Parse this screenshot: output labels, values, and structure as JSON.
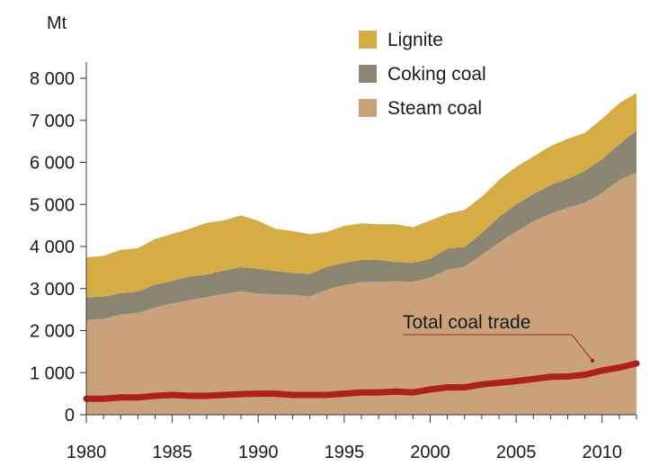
{
  "chart_data": {
    "type": "area",
    "stacked": true,
    "ylabel": "Mt",
    "ylim": [
      0,
      8000
    ],
    "yticks": [
      0,
      1000,
      2000,
      3000,
      4000,
      5000,
      6000,
      7000,
      8000
    ],
    "ytick_labels": [
      "0",
      "1 000",
      "2 000",
      "3 000",
      "4 000",
      "5 000",
      "6 000",
      "7 000",
      "8 000"
    ],
    "xlim": [
      1980,
      2012
    ],
    "xticks": [
      1980,
      1985,
      1990,
      1995,
      2000,
      2005,
      2010
    ],
    "xtick_labels": [
      "1980",
      "1985",
      "1990",
      "1995",
      "2000",
      "2005",
      "2010"
    ],
    "grid": false,
    "legend_position": "top-right",
    "x": [
      1980,
      1981,
      1982,
      1983,
      1984,
      1985,
      1986,
      1987,
      1988,
      1989,
      1990,
      1991,
      1992,
      1993,
      1994,
      1995,
      1996,
      1997,
      1998,
      1999,
      2000,
      2001,
      2002,
      2003,
      2004,
      2005,
      2006,
      2007,
      2008,
      2009,
      2010,
      2011,
      2012
    ],
    "series": [
      {
        "name": "Steam coal",
        "color": "#c9a17a",
        "values": [
          2250,
          2280,
          2380,
          2420,
          2550,
          2650,
          2720,
          2800,
          2870,
          2940,
          2880,
          2860,
          2850,
          2810,
          2980,
          3080,
          3150,
          3160,
          3170,
          3160,
          3260,
          3450,
          3520,
          3800,
          4100,
          4350,
          4600,
          4780,
          4920,
          5040,
          5280,
          5580,
          5760
        ]
      },
      {
        "name": "Coking coal",
        "color": "#8a8672",
        "values": [
          540,
          530,
          510,
          510,
          540,
          530,
          570,
          530,
          560,
          570,
          590,
          560,
          520,
          540,
          540,
          530,
          530,
          520,
          460,
          450,
          450,
          500,
          470,
          520,
          600,
          650,
          650,
          680,
          690,
          760,
          800,
          850,
          1000
        ]
      },
      {
        "name": "Lignite",
        "color": "#d6ac45",
        "values": [
          950,
          970,
          1030,
          1030,
          1090,
          1120,
          1130,
          1230,
          1190,
          1230,
          1140,
          1000,
          1000,
          940,
          830,
          880,
          870,
          850,
          900,
          850,
          910,
          830,
          880,
          860,
          880,
          890,
          890,
          930,
          950,
          900,
          960,
          980,
          890
        ]
      }
    ],
    "line_series": {
      "name": "Total coal trade",
      "color": "#b01e1e",
      "values": [
        380,
        380,
        410,
        410,
        450,
        470,
        450,
        450,
        470,
        490,
        500,
        500,
        470,
        470,
        470,
        500,
        530,
        530,
        550,
        530,
        600,
        650,
        650,
        720,
        760,
        800,
        850,
        900,
        910,
        950,
        1050,
        1120,
        1220
      ]
    },
    "annotations": [
      {
        "text": "Total coal trade"
      }
    ]
  }
}
